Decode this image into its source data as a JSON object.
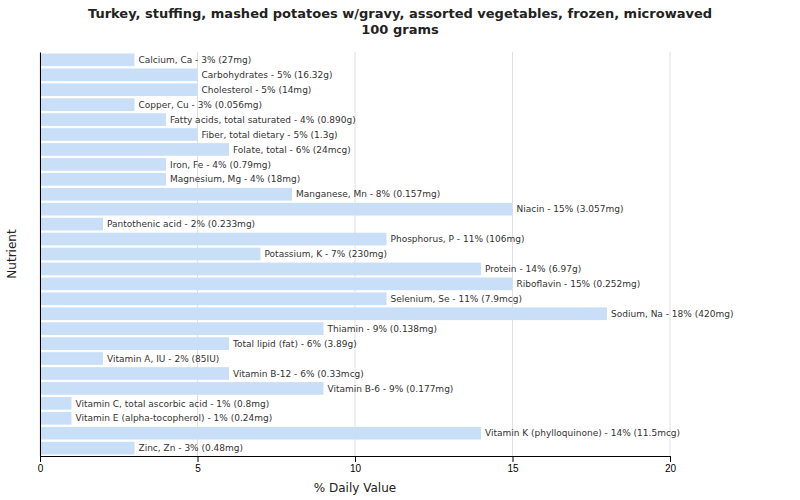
{
  "chart_data": {
    "type": "bar",
    "orientation": "horizontal",
    "title": "Turkey, stuffing, mashed potatoes w/gravy, assorted vegetables, frozen, microwaved\n100 grams",
    "xlabel": "% Daily Value",
    "ylabel": "Nutrient",
    "categories": [
      "Calcium, Ca - 3% (27mg)",
      "Carbohydrates - 5% (16.32g)",
      "Cholesterol - 5% (14mg)",
      "Copper, Cu - 3% (0.056mg)",
      "Fatty acids, total saturated - 4% (0.890g)",
      "Fiber, total dietary - 5% (1.3g)",
      "Folate, total - 6% (24mcg)",
      "Iron, Fe - 4% (0.79mg)",
      "Magnesium, Mg - 4% (18mg)",
      "Manganese, Mn - 8% (0.157mg)",
      "Niacin - 15% (3.057mg)",
      "Pantothenic acid - 2% (0.233mg)",
      "Phosphorus, P - 11% (106mg)",
      "Potassium, K - 7% (230mg)",
      "Protein - 14% (6.97g)",
      "Riboflavin - 15% (0.252mg)",
      "Selenium, Se - 11% (7.9mcg)",
      "Sodium, Na - 18% (420mg)",
      "Thiamin - 9% (0.138mg)",
      "Total lipid (fat) - 6% (3.89g)",
      "Vitamin A, IU - 2% (85IU)",
      "Vitamin B-12 - 6% (0.33mcg)",
      "Vitamin B-6 - 9% (0.177mg)",
      "Vitamin C, total ascorbic acid - 1% (0.8mg)",
      "Vitamin E (alpha-tocopherol) - 1% (0.24mg)",
      "Vitamin K (phylloquinone) - 14% (11.5mcg)",
      "Zinc, Zn - 3% (0.48mg)"
    ],
    "values": [
      3,
      5,
      5,
      3,
      4,
      5,
      6,
      4,
      4,
      8,
      15,
      2,
      11,
      7,
      14,
      15,
      11,
      18,
      9,
      6,
      2,
      6,
      9,
      1,
      1,
      14,
      3
    ],
    "color": "#c9dff7",
    "xlim": [
      0,
      20
    ],
    "xticks": [
      0,
      5,
      10,
      15,
      20
    ],
    "grid": true,
    "tick_labels": "x"
  }
}
